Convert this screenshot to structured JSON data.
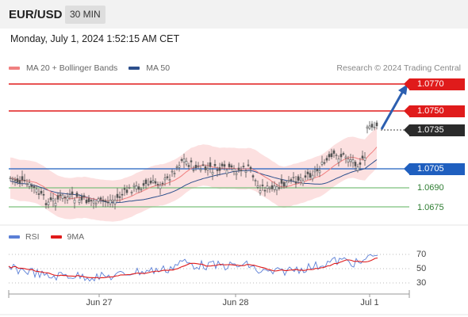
{
  "header": {
    "pair": "EUR/USD",
    "timeframe": "30 MIN"
  },
  "datetime": "Monday, July 1, 2024 1:52:15 AM CET",
  "legend": {
    "items": [
      {
        "label": "MA 20 + Bollinger Bands",
        "color": "#f08080"
      },
      {
        "label": "MA 50",
        "color": "#2c4f8c"
      }
    ],
    "credit": "Research © 2024 Trading Central"
  },
  "price_levels": [
    {
      "label": "1.0770",
      "style": "red"
    },
    {
      "label": "1.0750",
      "style": "red"
    },
    {
      "label": "1.0735",
      "style": "dark"
    },
    {
      "label": "1.0705",
      "style": "blue"
    },
    {
      "label": "1.0690",
      "style": "plain"
    },
    {
      "label": "1.0675",
      "style": "plain"
    }
  ],
  "rsi_legend": {
    "items": [
      {
        "label": "RSI",
        "color": "#5b7fd6"
      },
      {
        "label": "9MA",
        "color": "#e01b1b"
      }
    ]
  },
  "rsi_levels": [
    "70",
    "50",
    "30"
  ],
  "x_axis": {
    "labels": [
      "Jun 27",
      "Jun 28",
      "Jul 1"
    ]
  },
  "colors": {
    "resistance": "#e01b1b",
    "pivot": "#1f5fbf",
    "support": "#7cc07c",
    "band_fill": "#fbdada",
    "candle": "#555555"
  }
}
